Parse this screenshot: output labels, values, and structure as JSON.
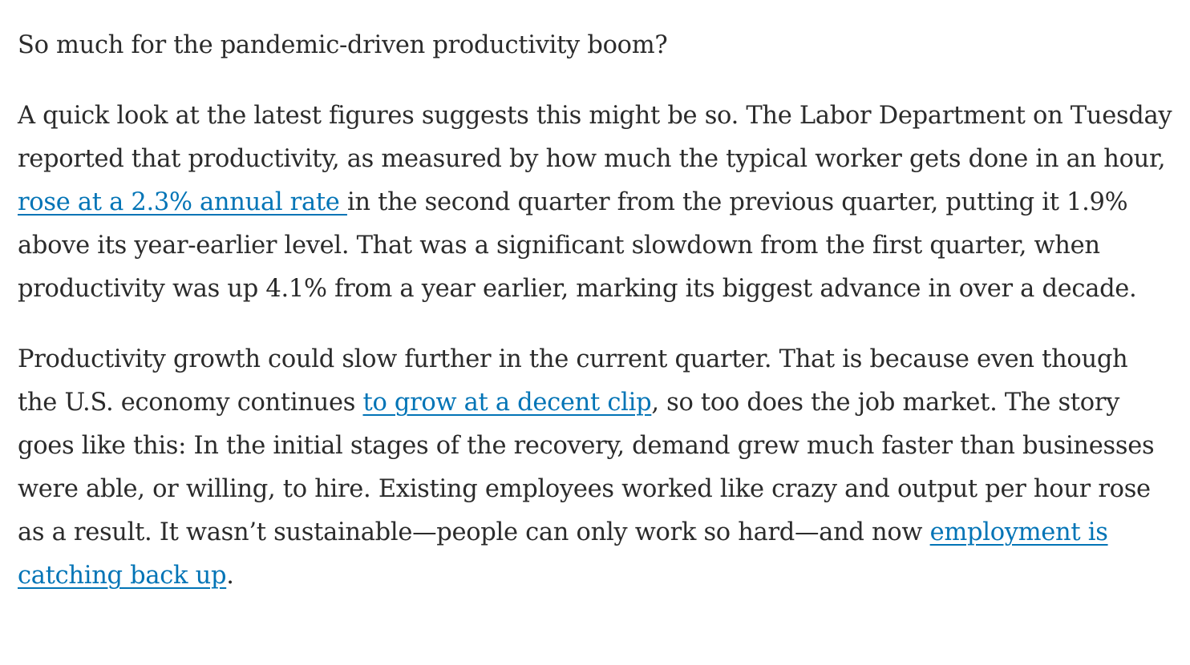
{
  "article": {
    "p1": {
      "text": "So much for the pandemic-driven productivity boom?"
    },
    "p2": {
      "before_link": "A quick look at the latest figures suggests this might be so. The Labor Department on Tuesday reported that productivity, as measured by how much the typical worker gets done in an hour, ",
      "link": "rose at a 2.3% annual rate ",
      "after_link": "in the second quarter from the previous quarter, putting it 1.9% above its year-earlier level. That was a significant slowdown from the first quarter, when productivity was up 4.1% from a year earlier, marking its biggest advance in over a decade."
    },
    "p3": {
      "before_link1": "Productivity growth could slow further in the current quarter. That is because even though the U.S. economy continues ",
      "link1": "to grow at a decent clip",
      "between_links": ", so too does the job market. The story goes like this: In the initial stages of the recovery, demand grew much faster than businesses were able, or willing, to hire. Existing employees worked like crazy and output per hour rose as a result. It wasn’t sustainable—people can only work so hard—and now ",
      "link2": "employment is catching back up",
      "end": "."
    }
  },
  "colors": {
    "text": "#2b2b2b",
    "link": "#0274b6",
    "background": "#ffffff"
  }
}
